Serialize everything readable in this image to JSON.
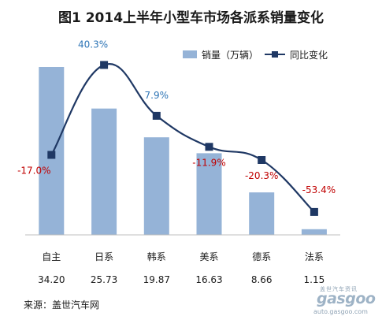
{
  "chart_data": {
    "type": "bar",
    "title": "图1  2014上半年小型车市场各派系销量变化",
    "categories": [
      "自主",
      "日系",
      "韩系",
      "美系",
      "德系",
      "法系"
    ],
    "series": [
      {
        "name": "销量（万辆）",
        "type": "bar",
        "axis": "left",
        "color": "#95b3d7",
        "values": [
          34.2,
          25.73,
          19.87,
          16.63,
          8.66,
          1.15
        ],
        "labels": [
          "34.20",
          "25.73",
          "19.87",
          "16.63",
          "8.66",
          "1.15"
        ]
      },
      {
        "name": "同比变化",
        "type": "line",
        "smooth": true,
        "axis": "right",
        "color": "#1f3864",
        "values": [
          -17.0,
          40.3,
          7.9,
          -11.9,
          -20.3,
          -53.4
        ],
        "labels": [
          "-17.0%",
          "40.3%",
          "7.9%",
          "-11.9%",
          "-20.3%",
          "-53.4%"
        ]
      }
    ],
    "ylim": [
      0,
      35
    ],
    "y2lim": [
      -68,
      45
    ],
    "grid": false,
    "legend": "top-right",
    "label_colors": {
      "positive": "#2e75b6",
      "negative": "#c00000"
    }
  },
  "source": "来源：盖世汽车网",
  "watermark": {
    "logo": "gasgoo",
    "tagline": "盖世汽车资讯",
    "url": "auto.gasgoo.com"
  }
}
